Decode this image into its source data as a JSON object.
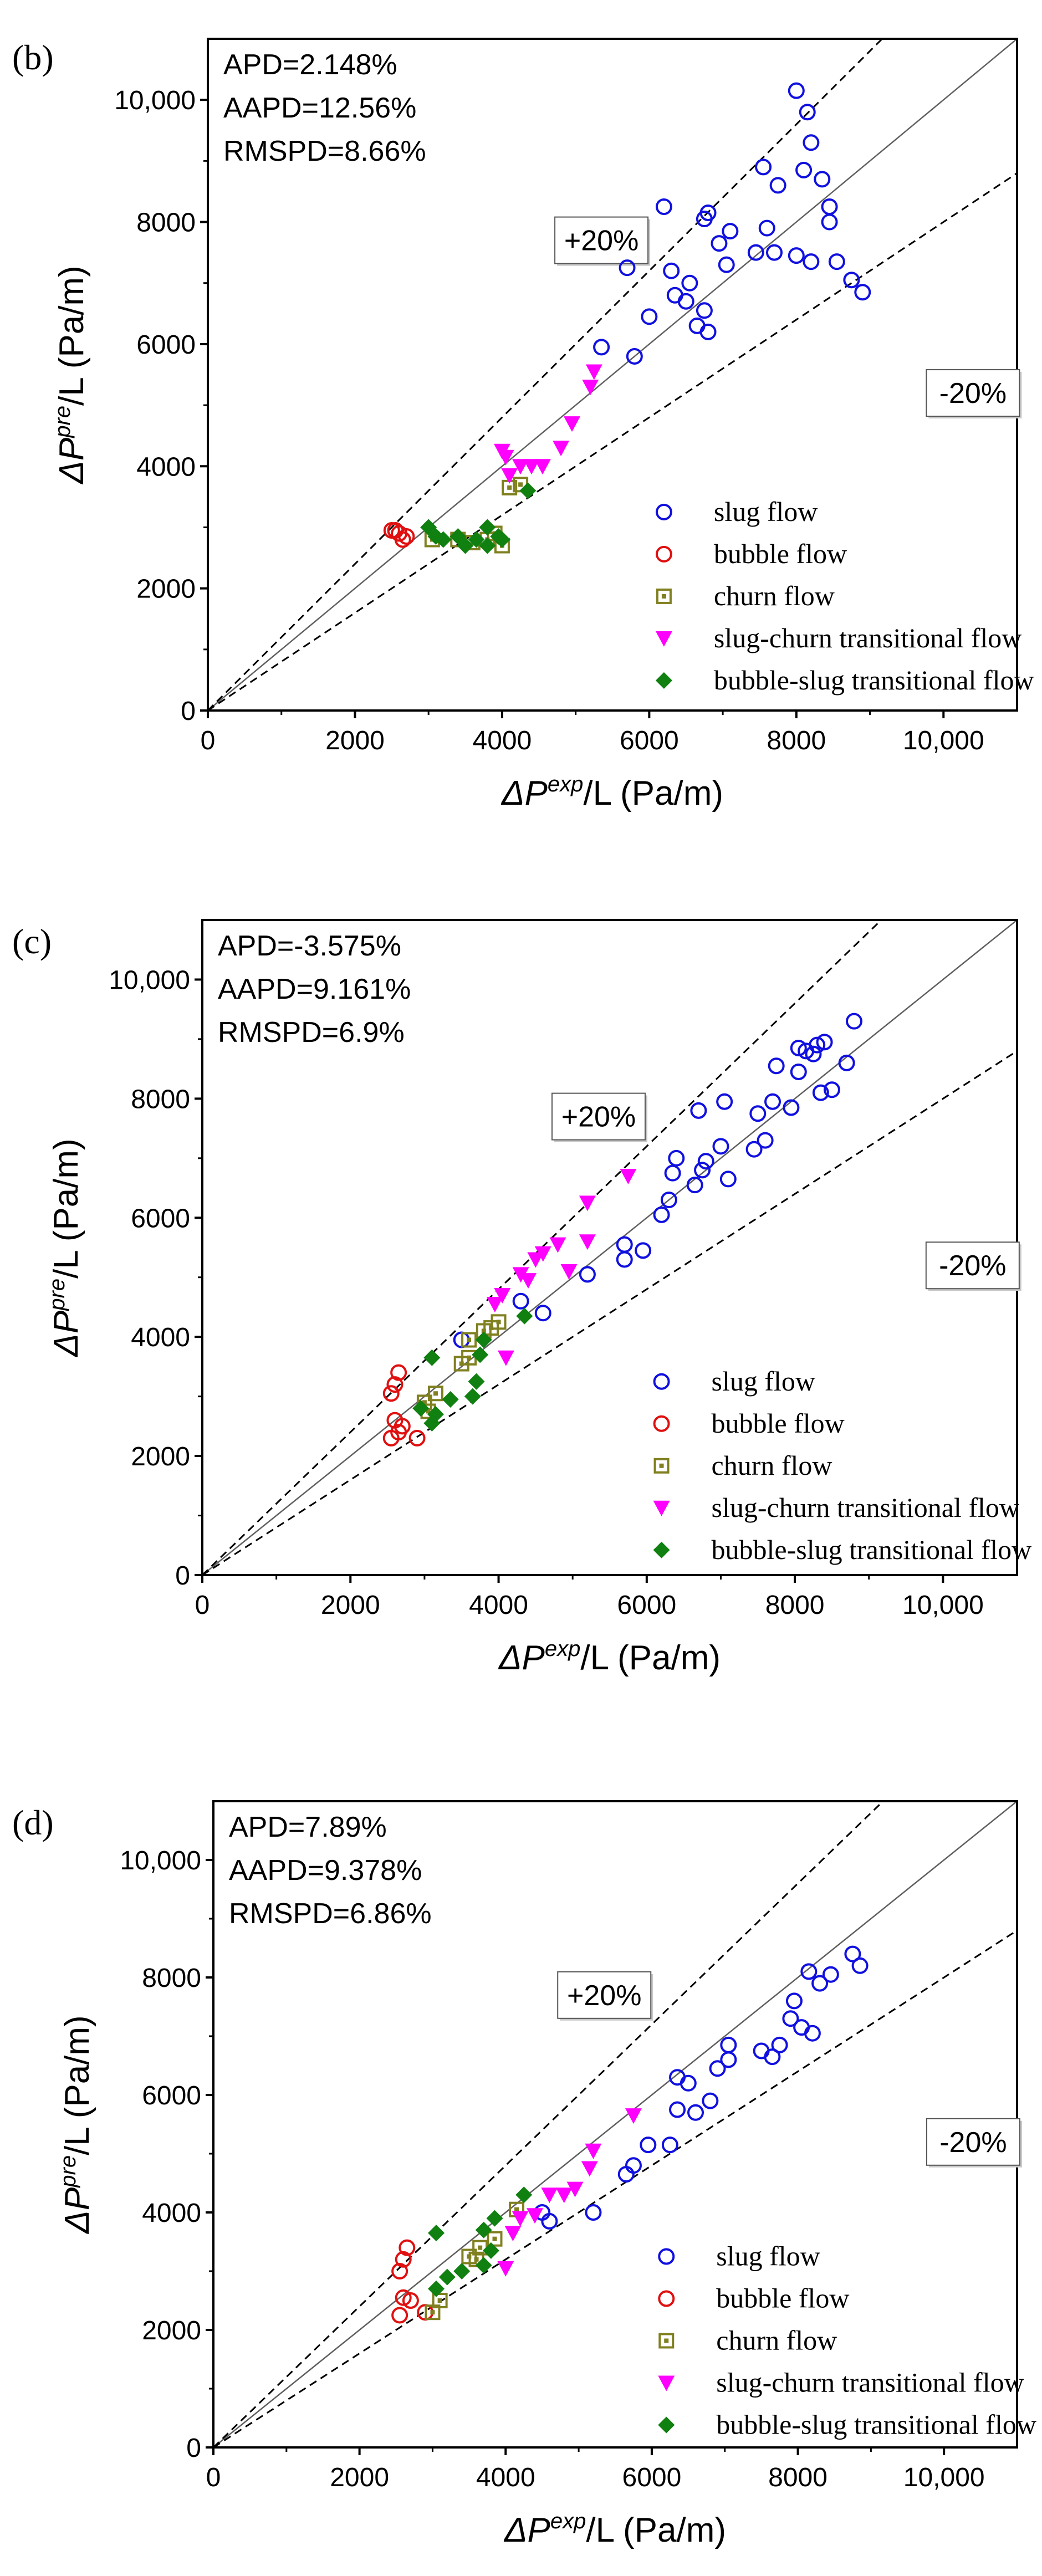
{
  "chart_data": [
    {
      "type": "scatter",
      "panel_label": "(b)",
      "xlabel": {
        "prefix": "ΔP",
        "sup": "exp",
        "suffix": "/L (Pa/m)"
      },
      "ylabel": {
        "prefix": "ΔP",
        "sup": "pre",
        "suffix": "/L (Pa/m)"
      },
      "xlim": [
        0,
        11000
      ],
      "ylim": [
        0,
        11000
      ],
      "xticks": [
        0,
        2000,
        4000,
        6000,
        8000,
        10000
      ],
      "yticks": [
        0,
        2000,
        4000,
        6000,
        8000,
        10000
      ],
      "tick_labels": [
        "0",
        "2000",
        "4000",
        "6000",
        "8000",
        "10,000"
      ],
      "stats": [
        "APD=2.148%",
        "AAPD=12.56%",
        "RMSPD=8.66%"
      ],
      "bands": {
        "upper": "+20%",
        "lower": "-20%"
      },
      "band_factors": [
        1.0,
        1.2,
        0.8
      ],
      "legend": [
        "slug flow",
        "bubble flow",
        "churn flow",
        "slug-churn transitional flow",
        "bubble-slug transitional flow"
      ],
      "series": [
        {
          "name": "slug flow",
          "marker": "circle-open",
          "color": "#1010e0",
          "points": [
            [
              8000,
              10150
            ],
            [
              8150,
              9800
            ],
            [
              8200,
              9300
            ],
            [
              7550,
              8900
            ],
            [
              8100,
              8850
            ],
            [
              8350,
              8700
            ],
            [
              7750,
              8600
            ],
            [
              6200,
              8250
            ],
            [
              6750,
              8050
            ],
            [
              6800,
              8150
            ],
            [
              8450,
              8250
            ],
            [
              8450,
              8000
            ],
            [
              7600,
              7900
            ],
            [
              6950,
              7650
            ],
            [
              7100,
              7850
            ],
            [
              7450,
              7500
            ],
            [
              7700,
              7500
            ],
            [
              8000,
              7450
            ],
            [
              7050,
              7300
            ],
            [
              8200,
              7350
            ],
            [
              8550,
              7350
            ],
            [
              8750,
              7050
            ],
            [
              8900,
              6850
            ],
            [
              5700,
              7250
            ],
            [
              6300,
              7200
            ],
            [
              6550,
              7000
            ],
            [
              6500,
              6700
            ],
            [
              6350,
              6800
            ],
            [
              6750,
              6550
            ],
            [
              6000,
              6450
            ],
            [
              6650,
              6300
            ],
            [
              6800,
              6200
            ],
            [
              5350,
              5950
            ],
            [
              5800,
              5800
            ]
          ]
        },
        {
          "name": "bubble flow",
          "marker": "circle-open",
          "color": "#e01010",
          "points": [
            [
              2500,
              2950
            ],
            [
              2600,
              2900
            ],
            [
              2700,
              2850
            ],
            [
              2650,
              2800
            ],
            [
              2550,
              2950
            ]
          ]
        },
        {
          "name": "churn flow",
          "marker": "square-open",
          "color": "#808020",
          "points": [
            [
              3050,
              2800
            ],
            [
              3400,
              2800
            ],
            [
              3600,
              2750
            ],
            [
              3800,
              2800
            ],
            [
              4000,
              2700
            ],
            [
              3900,
              2900
            ],
            [
              4100,
              3650
            ],
            [
              4250,
              3700
            ]
          ]
        },
        {
          "name": "slug-churn transitional flow",
          "marker": "triangle-down",
          "color": "#ff00ff",
          "points": [
            [
              4000,
              4250
            ],
            [
              4050,
              4150
            ],
            [
              4250,
              4000
            ],
            [
              4400,
              4000
            ],
            [
              4550,
              4000
            ],
            [
              4800,
              4300
            ],
            [
              4950,
              4700
            ],
            [
              5200,
              5300
            ],
            [
              5250,
              5550
            ],
            [
              4100,
              3850
            ]
          ]
        },
        {
          "name": "bubble-slug transitional flow",
          "marker": "diamond",
          "color": "#108010",
          "points": [
            [
              3000,
              3000
            ],
            [
              3100,
              2850
            ],
            [
              3200,
              2800
            ],
            [
              3400,
              2850
            ],
            [
              3500,
              2700
            ],
            [
              3650,
              2800
            ],
            [
              3800,
              2700
            ],
            [
              3800,
              3000
            ],
            [
              3950,
              2850
            ],
            [
              4000,
              2800
            ],
            [
              4350,
              3600
            ]
          ]
        }
      ]
    },
    {
      "type": "scatter",
      "panel_label": "(c)",
      "xlabel": {
        "prefix": "ΔP",
        "sup": "exp",
        "suffix": "/L (Pa/m)"
      },
      "ylabel": {
        "prefix": "ΔP",
        "sup": "pre",
        "suffix": "/L (Pa/m)"
      },
      "xlim": [
        0,
        11000
      ],
      "ylim": [
        0,
        11000
      ],
      "xticks": [
        0,
        2000,
        4000,
        6000,
        8000,
        10000
      ],
      "yticks": [
        0,
        2000,
        4000,
        6000,
        8000,
        10000
      ],
      "tick_labels": [
        "0",
        "2000",
        "4000",
        "6000",
        "8000",
        "10,000"
      ],
      "stats": [
        "APD=-3.575%",
        "AAPD=9.161%",
        "RMSPD=6.9%"
      ],
      "bands": {
        "upper": "+20%",
        "lower": "-20%"
      },
      "band_factors": [
        1.0,
        1.2,
        0.8
      ],
      "legend": [
        "slug flow",
        "bubble flow",
        "churn flow",
        "slug-churn transitional flow",
        "bubble-slug transitional flow"
      ],
      "series": [
        {
          "name": "slug flow",
          "marker": "circle-open",
          "color": "#1010e0",
          "points": [
            [
              8800,
              9300
            ],
            [
              8400,
              8950
            ],
            [
              8300,
              8900
            ],
            [
              8050,
              8850
            ],
            [
              8150,
              8800
            ],
            [
              8250,
              8750
            ],
            [
              7750,
              8550
            ],
            [
              8050,
              8450
            ],
            [
              8700,
              8600
            ],
            [
              8500,
              8150
            ],
            [
              8350,
              8100
            ],
            [
              7700,
              7950
            ],
            [
              7500,
              7750
            ],
            [
              7950,
              7850
            ],
            [
              6700,
              7800
            ],
            [
              7050,
              7950
            ],
            [
              7600,
              7300
            ],
            [
              7450,
              7150
            ],
            [
              7000,
              7200
            ],
            [
              6400,
              7000
            ],
            [
              6800,
              6950
            ],
            [
              6750,
              6800
            ],
            [
              6350,
              6750
            ],
            [
              7100,
              6650
            ],
            [
              6650,
              6550
            ],
            [
              6300,
              6300
            ],
            [
              6200,
              6050
            ],
            [
              5700,
              5550
            ],
            [
              5950,
              5450
            ],
            [
              5700,
              5300
            ],
            [
              5200,
              5050
            ],
            [
              4600,
              4400
            ],
            [
              4300,
              4600
            ],
            [
              3500,
              3950
            ]
          ]
        },
        {
          "name": "bubble flow",
          "marker": "circle-open",
          "color": "#e01010",
          "points": [
            [
              2650,
              3400
            ],
            [
              2600,
              3200
            ],
            [
              2550,
              3050
            ],
            [
              2600,
              2600
            ],
            [
              2700,
              2500
            ],
            [
              2550,
              2300
            ],
            [
              2900,
              2300
            ],
            [
              2650,
              2400
            ]
          ]
        },
        {
          "name": "churn flow",
          "marker": "square-open",
          "color": "#808020",
          "points": [
            [
              3600,
              3950
            ],
            [
              3900,
              4150
            ],
            [
              4000,
              4250
            ],
            [
              3800,
              4100
            ],
            [
              3500,
              3550
            ],
            [
              3600,
              3650
            ],
            [
              3150,
              3050
            ],
            [
              3000,
              2900
            ],
            [
              3050,
              2750
            ]
          ]
        },
        {
          "name": "slug-churn transitional flow",
          "marker": "triangle-down",
          "color": "#ff00ff",
          "points": [
            [
              5750,
              6700
            ],
            [
              5200,
              6250
            ],
            [
              5200,
              5600
            ],
            [
              4800,
              5550
            ],
            [
              4600,
              5400
            ],
            [
              4500,
              5300
            ],
            [
              4300,
              5050
            ],
            [
              4400,
              4950
            ],
            [
              4950,
              5100
            ],
            [
              4050,
              4700
            ],
            [
              3950,
              4550
            ],
            [
              4100,
              3650
            ]
          ]
        },
        {
          "name": "bubble-slug transitional flow",
          "marker": "diamond",
          "color": "#108010",
          "points": [
            [
              3100,
              3650
            ],
            [
              3800,
              3950
            ],
            [
              3750,
              3700
            ],
            [
              3700,
              3250
            ],
            [
              3650,
              3000
            ],
            [
              3350,
              2950
            ],
            [
              3150,
              2700
            ],
            [
              3100,
              2550
            ],
            [
              2950,
              2800
            ],
            [
              4350,
              4350
            ]
          ]
        }
      ]
    },
    {
      "type": "scatter",
      "panel_label": "(d)",
      "xlabel": {
        "prefix": "ΔP",
        "sup": "exp",
        "suffix": "/L (Pa/m)"
      },
      "ylabel": {
        "prefix": "ΔP",
        "sup": "pre",
        "suffix": "/L (Pa/m)"
      },
      "xlim": [
        0,
        11000
      ],
      "ylim": [
        0,
        11000
      ],
      "xticks": [
        0,
        2000,
        4000,
        6000,
        8000,
        10000
      ],
      "yticks": [
        0,
        2000,
        4000,
        6000,
        8000,
        10000
      ],
      "tick_labels": [
        "0",
        "2000",
        "4000",
        "6000",
        "8000",
        "10,000"
      ],
      "stats": [
        "APD=7.89%",
        "AAPD=9.378%",
        "RMSPD=6.86%"
      ],
      "bands": {
        "upper": "+20%",
        "lower": "-20%"
      },
      "band_factors": [
        1.0,
        1.2,
        0.8
      ],
      "legend": [
        "slug flow",
        "bubble flow",
        "churn flow",
        "slug-churn transitional flow",
        "bubble-slug transitional flow"
      ],
      "series": [
        {
          "name": "slug flow",
          "marker": "circle-open",
          "color": "#1010e0",
          "points": [
            [
              8750,
              8400
            ],
            [
              8850,
              8200
            ],
            [
              8150,
              8100
            ],
            [
              8450,
              8050
            ],
            [
              8300,
              7900
            ],
            [
              7950,
              7600
            ],
            [
              7900,
              7300
            ],
            [
              8050,
              7150
            ],
            [
              8200,
              7050
            ],
            [
              7750,
              6850
            ],
            [
              7050,
              6850
            ],
            [
              7500,
              6750
            ],
            [
              7650,
              6650
            ],
            [
              6900,
              6450
            ],
            [
              7050,
              6600
            ],
            [
              6500,
              6200
            ],
            [
              6350,
              6300
            ],
            [
              6800,
              5900
            ],
            [
              6350,
              5750
            ],
            [
              6600,
              5700
            ],
            [
              5950,
              5150
            ],
            [
              6250,
              5150
            ],
            [
              5750,
              4800
            ],
            [
              5650,
              4650
            ],
            [
              5200,
              4000
            ],
            [
              4500,
              4000
            ],
            [
              4600,
              3850
            ]
          ]
        },
        {
          "name": "bubble flow",
          "marker": "circle-open",
          "color": "#e01010",
          "points": [
            [
              2650,
              3400
            ],
            [
              2600,
              3200
            ],
            [
              2550,
              3000
            ],
            [
              2600,
              2550
            ],
            [
              2700,
              2500
            ],
            [
              2550,
              2250
            ],
            [
              2900,
              2300
            ]
          ]
        },
        {
          "name": "churn flow",
          "marker": "square-open",
          "color": "#808020",
          "points": [
            [
              3650,
              3400
            ],
            [
              3850,
              3550
            ],
            [
              4150,
              4050
            ],
            [
              3500,
              3250
            ],
            [
              3600,
              3200
            ],
            [
              3100,
              2500
            ],
            [
              3000,
              2300
            ]
          ]
        },
        {
          "name": "slug-churn transitional flow",
          "marker": "triangle-down",
          "color": "#ff00ff",
          "points": [
            [
              5750,
              5650
            ],
            [
              5200,
              5050
            ],
            [
              5150,
              4750
            ],
            [
              4950,
              4400
            ],
            [
              4800,
              4300
            ],
            [
              4600,
              4300
            ],
            [
              4400,
              3950
            ],
            [
              4200,
              3900
            ],
            [
              4100,
              3650
            ],
            [
              4000,
              3050
            ]
          ]
        },
        {
          "name": "bubble-slug transitional flow",
          "marker": "diamond",
          "color": "#108010",
          "points": [
            [
              3050,
              3650
            ],
            [
              3850,
              3900
            ],
            [
              4250,
              4300
            ],
            [
              3700,
              3700
            ],
            [
              3800,
              3350
            ],
            [
              3400,
              3000
            ],
            [
              3700,
              3100
            ],
            [
              3200,
              2900
            ],
            [
              3050,
              2700
            ]
          ]
        }
      ]
    }
  ]
}
